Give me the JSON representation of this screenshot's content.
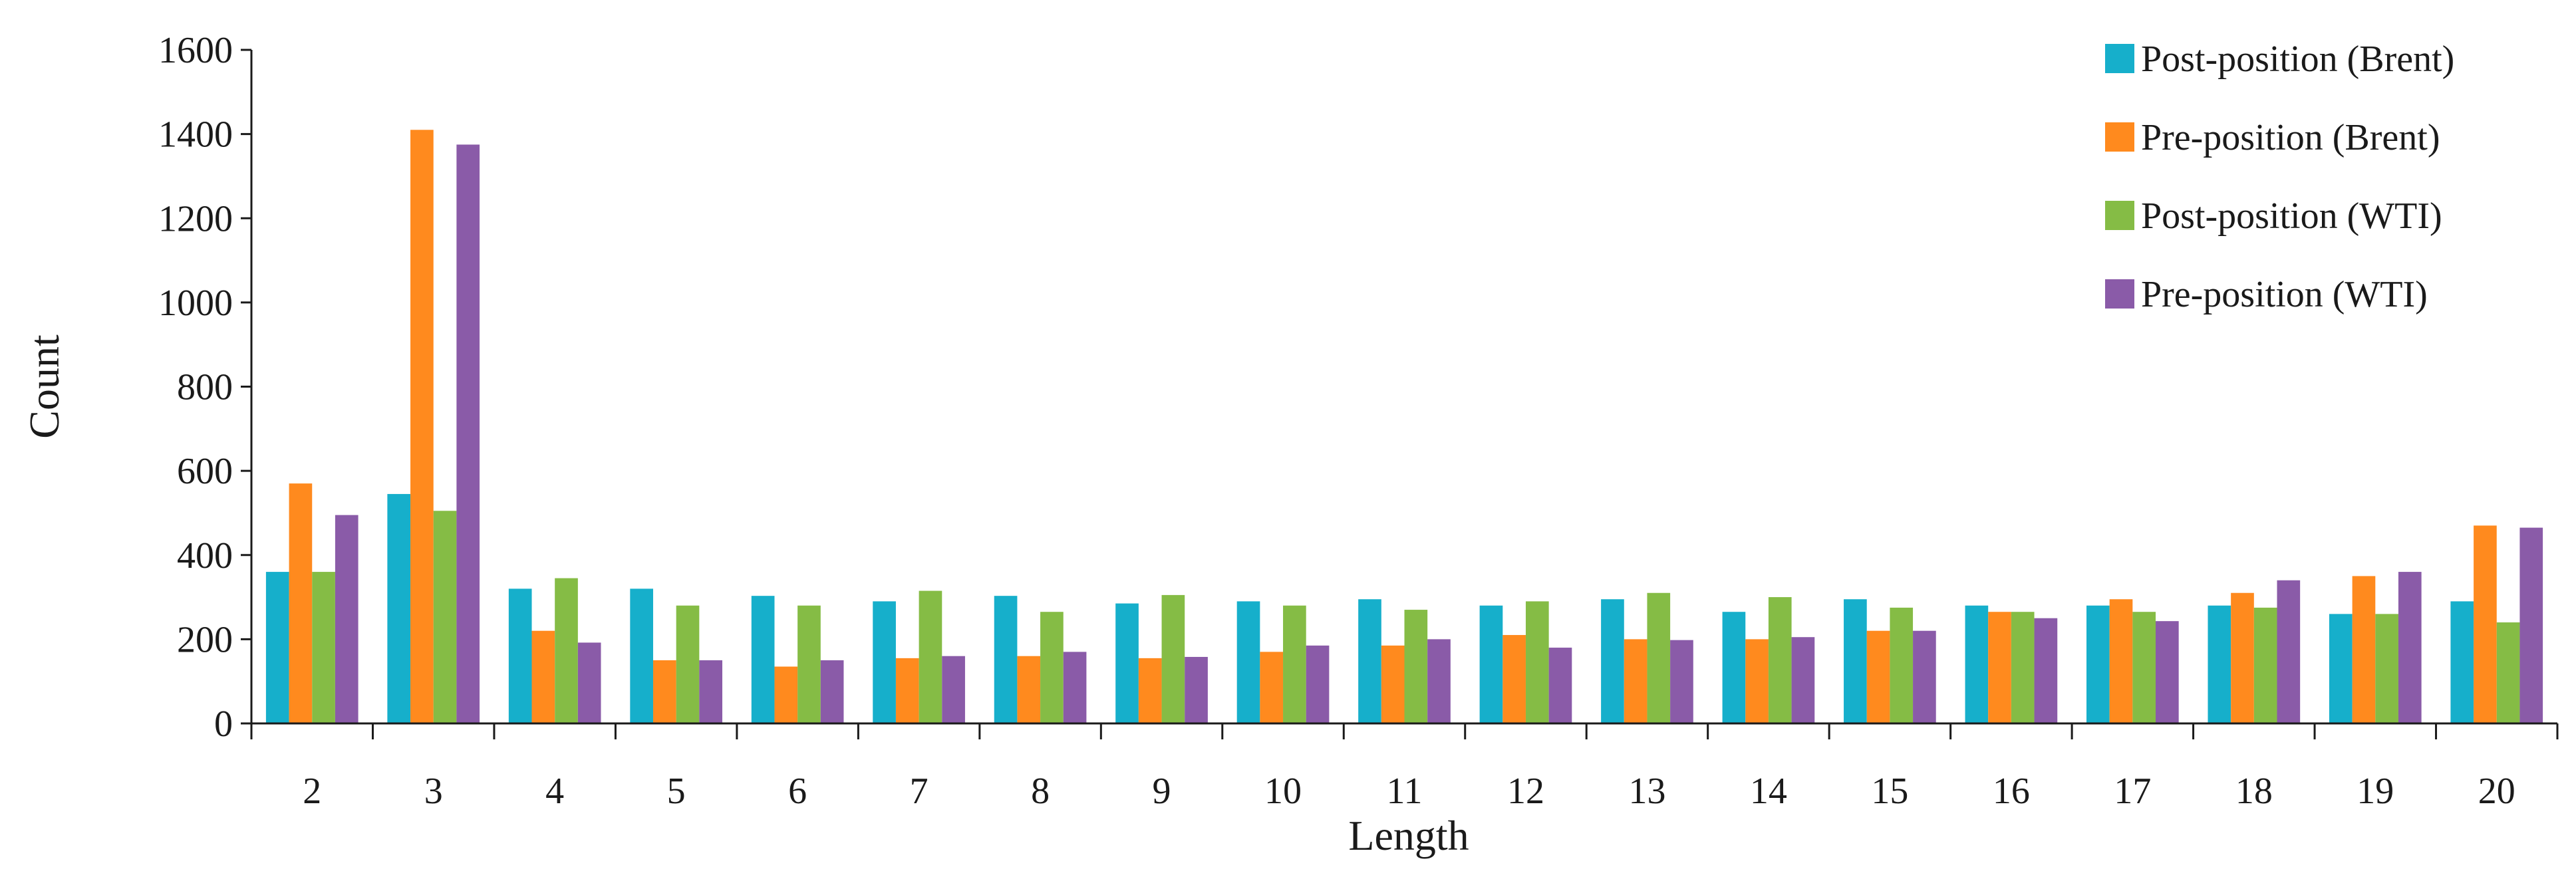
{
  "chart_data": {
    "type": "bar",
    "title": "",
    "xlabel": "Length",
    "ylabel": "Count",
    "ylim": [
      0,
      1600
    ],
    "yticks": [
      0,
      200,
      400,
      600,
      800,
      1000,
      1200,
      1400,
      1600
    ],
    "grid": false,
    "legend_position": "top-right",
    "categories": [
      "2",
      "3",
      "4",
      "5",
      "6",
      "7",
      "8",
      "9",
      "10",
      "11",
      "12",
      "13",
      "14",
      "15",
      "16",
      "17",
      "18",
      "19",
      "20"
    ],
    "series": [
      {
        "name": "Post-position (Brent)",
        "color": "#16AFCB",
        "values": [
          360,
          545,
          320,
          320,
          303,
          290,
          303,
          285,
          290,
          295,
          280,
          295,
          265,
          295,
          280,
          280,
          280,
          260,
          290
        ]
      },
      {
        "name": "Pre-position (Brent)",
        "color": "#FF8A1E",
        "values": [
          570,
          1410,
          220,
          150,
          135,
          155,
          160,
          155,
          170,
          185,
          210,
          200,
          200,
          220,
          265,
          295,
          310,
          350,
          470
        ]
      },
      {
        "name": "Post-position (WTI)",
        "color": "#85BC45",
        "values": [
          360,
          505,
          345,
          280,
          280,
          315,
          265,
          305,
          280,
          270,
          290,
          310,
          300,
          275,
          265,
          265,
          275,
          260,
          240
        ]
      },
      {
        "name": "Pre-position (WTI)",
        "color": "#8A5BA8",
        "values": [
          495,
          1375,
          192,
          150,
          150,
          160,
          170,
          158,
          185,
          200,
          180,
          198,
          205,
          220,
          250,
          243,
          340,
          360,
          465
        ]
      }
    ]
  }
}
